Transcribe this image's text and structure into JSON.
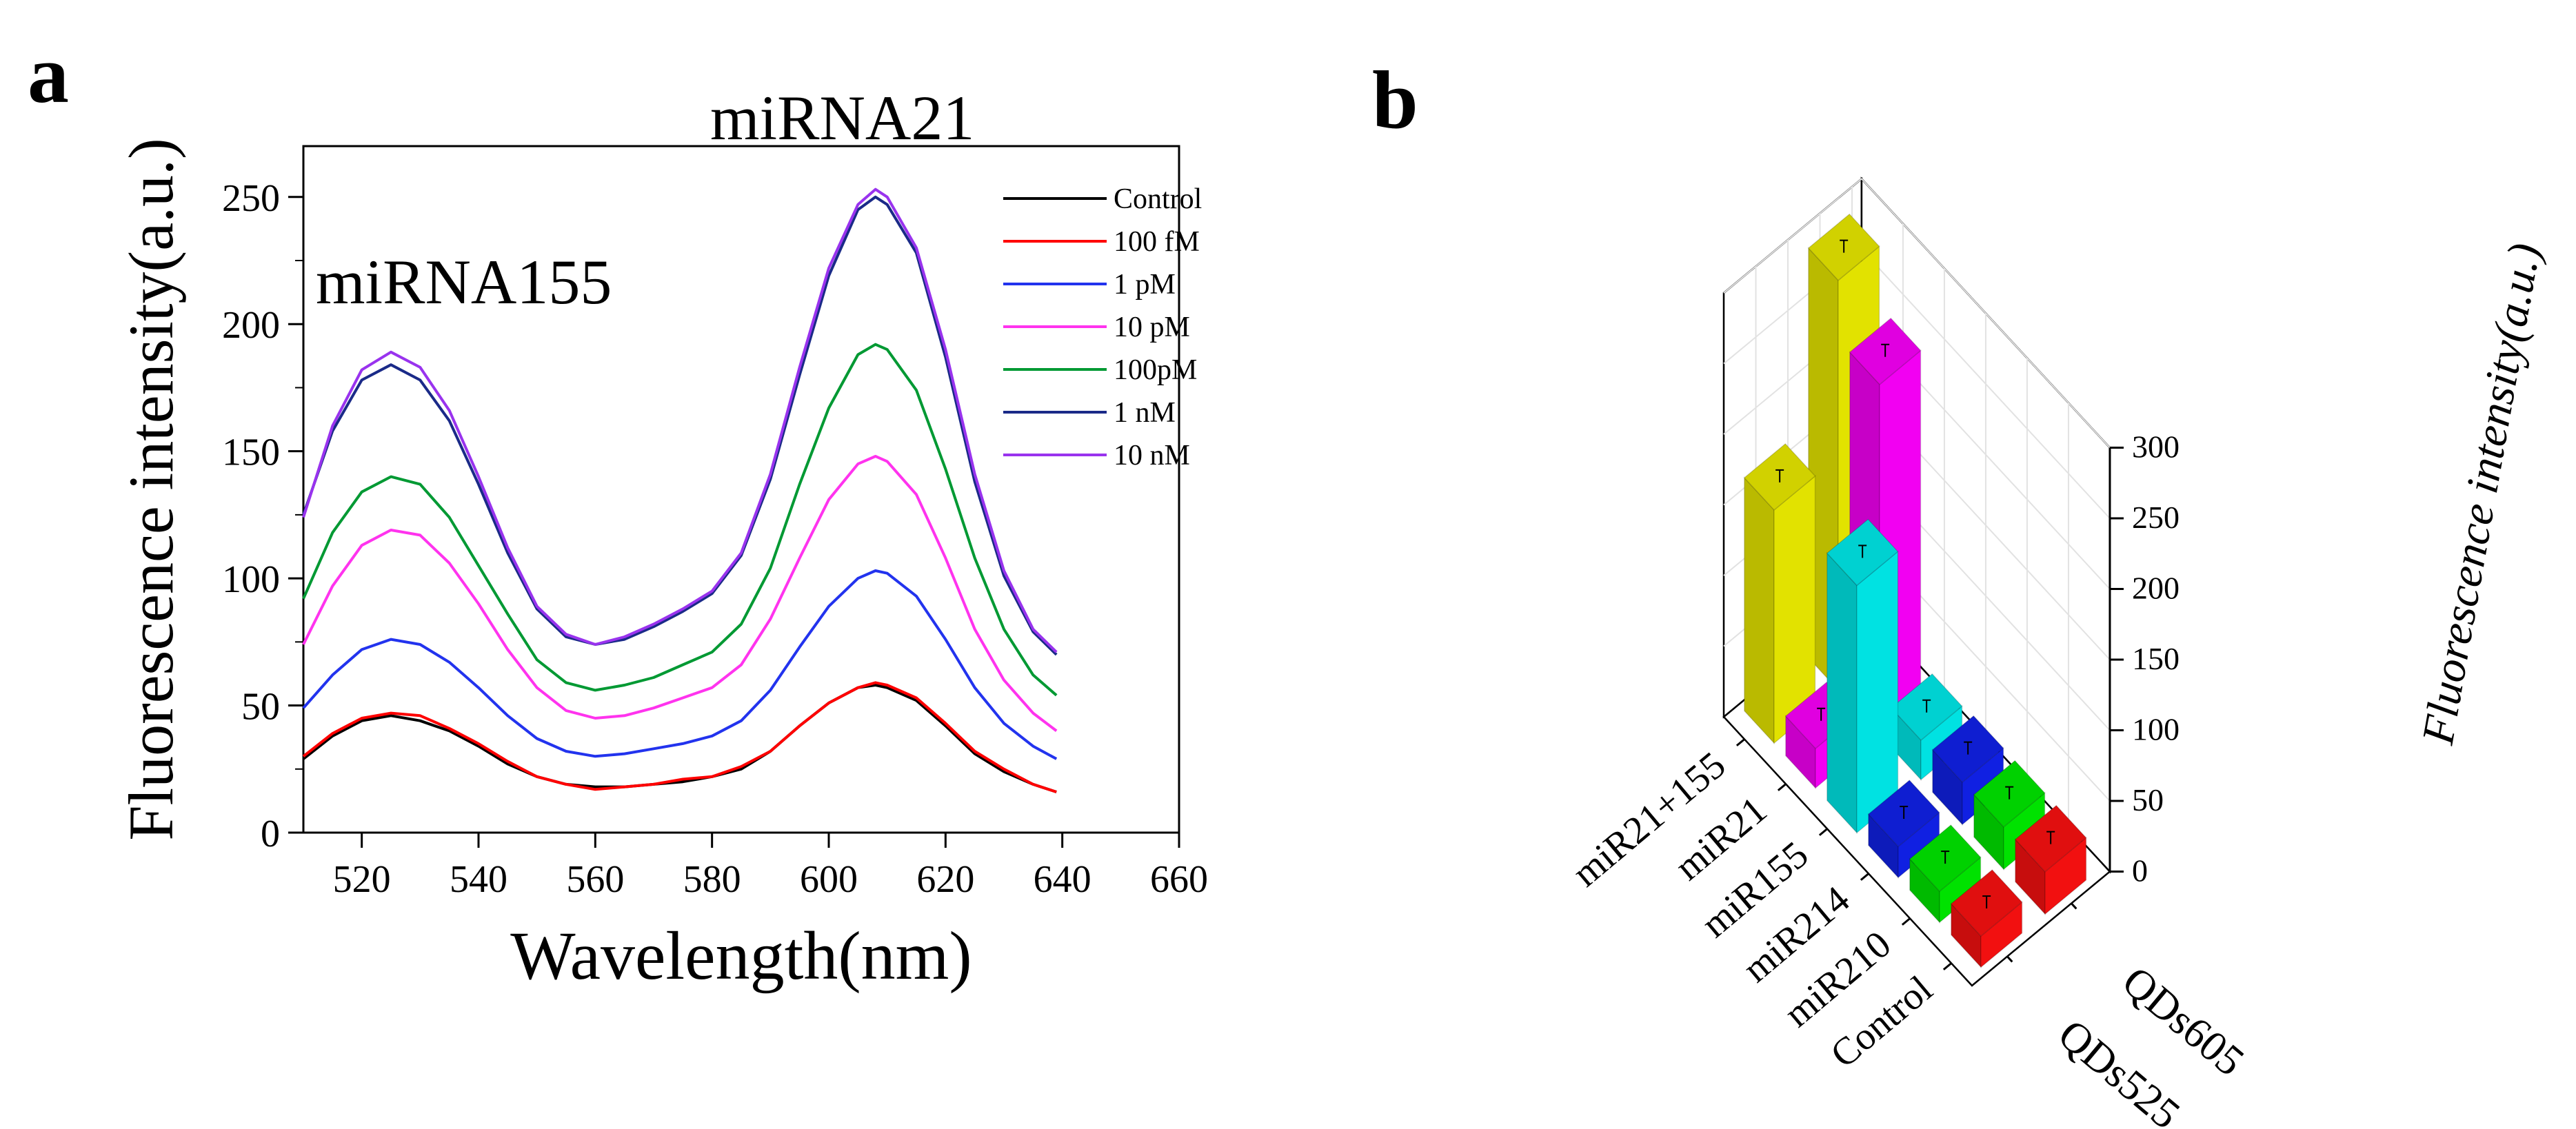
{
  "panels": {
    "a": {
      "letter": "a"
    },
    "b": {
      "letter": "b"
    }
  },
  "chart_data": [
    {
      "type": "line",
      "xlabel": "Wavelength(nm)",
      "ylabel": "Fluorescence intensity(a.u.)",
      "xlim": [
        510,
        660
      ],
      "ylim": [
        0,
        270
      ],
      "xticks": [
        520,
        540,
        560,
        580,
        600,
        620,
        640,
        660
      ],
      "yticks": [
        0,
        50,
        100,
        150,
        200,
        250
      ],
      "annotations": [
        {
          "text": "miRNA155"
        },
        {
          "text": "miRNA21"
        }
      ],
      "legend": {
        "placement": "top-right"
      },
      "x": [
        510,
        515,
        520,
        525,
        530,
        535,
        540,
        545,
        550,
        555,
        560,
        565,
        570,
        575,
        580,
        585,
        590,
        595,
        600,
        605,
        608,
        610,
        615,
        620,
        625,
        630,
        635,
        639
      ],
      "series": [
        {
          "name": "Control",
          "color": "#000000",
          "values": [
            29,
            38,
            44,
            46,
            44,
            40,
            34,
            27,
            22,
            19,
            18,
            18,
            19,
            20,
            22,
            25,
            32,
            42,
            51,
            57,
            58,
            57,
            52,
            42,
            31,
            24,
            19,
            16
          ]
        },
        {
          "name": "100 fM",
          "color": "#ff0000",
          "values": [
            30,
            39,
            45,
            47,
            46,
            41,
            35,
            28,
            22,
            19,
            17,
            18,
            19,
            21,
            22,
            26,
            32,
            42,
            51,
            57,
            59,
            58,
            53,
            43,
            32,
            25,
            19,
            16
          ]
        },
        {
          "name": "1  pM",
          "color": "#2233ee",
          "values": [
            49,
            62,
            72,
            76,
            74,
            67,
            57,
            46,
            37,
            32,
            30,
            31,
            33,
            35,
            38,
            44,
            56,
            73,
            89,
            100,
            103,
            102,
            93,
            76,
            57,
            43,
            34,
            29
          ]
        },
        {
          "name": "10 pM",
          "color": "#ff33ee",
          "values": [
            74,
            97,
            113,
            119,
            117,
            106,
            90,
            72,
            57,
            48,
            45,
            46,
            49,
            53,
            57,
            66,
            84,
            108,
            131,
            145,
            148,
            146,
            133,
            108,
            80,
            60,
            47,
            40
          ]
        },
        {
          "name": "100pM",
          "color": "#009933",
          "values": [
            92,
            118,
            134,
            140,
            137,
            124,
            105,
            86,
            68,
            59,
            56,
            58,
            61,
            66,
            71,
            82,
            104,
            137,
            167,
            188,
            192,
            190,
            174,
            143,
            108,
            80,
            62,
            54
          ]
        },
        {
          "name": "1  nM",
          "color": "#1a2a88",
          "values": [
            125,
            158,
            178,
            184,
            178,
            162,
            137,
            110,
            88,
            77,
            74,
            76,
            81,
            87,
            94,
            109,
            139,
            180,
            219,
            245,
            250,
            247,
            228,
            187,
            138,
            101,
            79,
            70
          ]
        },
        {
          "name": "10 nM",
          "color": "#9933ee",
          "values": [
            124,
            160,
            182,
            189,
            183,
            166,
            140,
            112,
            89,
            78,
            74,
            77,
            82,
            88,
            95,
            110,
            141,
            183,
            222,
            247,
            253,
            250,
            230,
            190,
            141,
            103,
            80,
            71
          ]
        }
      ]
    },
    {
      "type": "bar",
      "zlabel": "Fluorescence intensity(a.u.)",
      "zlim": [
        0,
        300
      ],
      "zticks": [
        0,
        50,
        100,
        150,
        200,
        250,
        300
      ],
      "categories": [
        "miR21+155",
        "miR21",
        "miR155",
        "miR214",
        "miR210",
        "Control"
      ],
      "series": [
        {
          "name": "QDs525",
          "values": [
            165,
            28,
            175,
            22,
            22,
            22
          ]
        },
        {
          "name": "QDs605",
          "values": [
            290,
            248,
            28,
            30,
            30,
            30
          ]
        }
      ],
      "bar_colors": [
        "#eeee00",
        "#ff00ff",
        "#00eeee",
        "#1122ee",
        "#00ee00",
        "#ff1111"
      ]
    }
  ]
}
